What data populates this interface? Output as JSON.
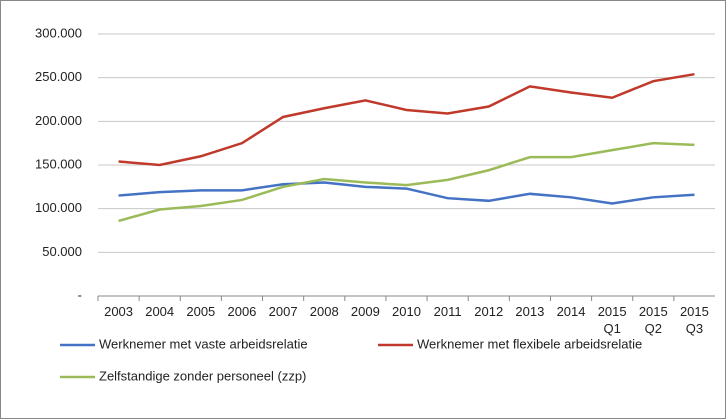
{
  "chart_data": {
    "type": "line",
    "categories": [
      "2003",
      "2004",
      "2005",
      "2006",
      "2007",
      "2008",
      "2009",
      "2010",
      "2011",
      "2012",
      "2013",
      "2014",
      "2015 Q1",
      "2015 Q2",
      "2015 Q3"
    ],
    "series": [
      {
        "name": "Werknemer met vaste arbeidsrelatie",
        "color": "#4472c4",
        "values": [
          115000,
          119000,
          121000,
          121000,
          128000,
          130000,
          125000,
          123000,
          112000,
          109000,
          117000,
          113000,
          106000,
          113000,
          116000
        ]
      },
      {
        "name": "Werknemer met flexibele arbeidsrelatie",
        "color": "#c0392b",
        "values": [
          154000,
          150000,
          160000,
          175000,
          205000,
          215000,
          224000,
          213000,
          209000,
          217000,
          240000,
          233000,
          227000,
          246000,
          254000
        ]
      },
      {
        "name": "Zelfstandige zonder personeel (zzp)",
        "color": "#9bbb59",
        "values": [
          86000,
          99000,
          103000,
          110000,
          125000,
          134000,
          130000,
          127000,
          133000,
          144000,
          159000,
          159000,
          167000,
          175000,
          173000
        ]
      }
    ],
    "ylim": [
      0,
      300000
    ],
    "yticks": [
      {
        "value": 0,
        "label": "-"
      },
      {
        "value": 50000,
        "label": "50.000"
      },
      {
        "value": 100000,
        "label": "100.000"
      },
      {
        "value": 150000,
        "label": "150.000"
      },
      {
        "value": 200000,
        "label": "200.000"
      },
      {
        "value": 250000,
        "label": "250.000"
      },
      {
        "value": 300000,
        "label": "300.000"
      }
    ],
    "grid": true
  }
}
